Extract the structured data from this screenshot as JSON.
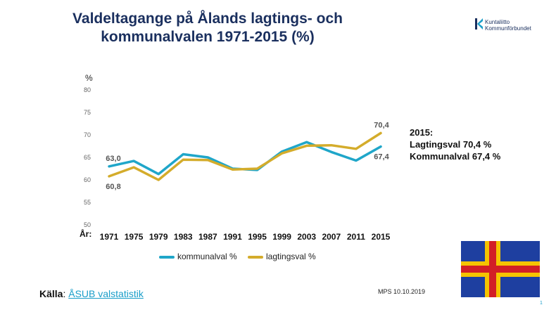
{
  "title_line1": "Valdeltagange på Ålands lagtings- och",
  "title_line2": "kommunalvalen 1971-2015 (%)",
  "logo": {
    "line1": "Kuntaliitto",
    "line2": "Kommunförbundet"
  },
  "note": {
    "heading": "2015:",
    "line1": "Lagtingsval 70,4 %",
    "line2": "Kommunalval 67,4 %"
  },
  "source": {
    "label": "Källa",
    "separator": ": ",
    "link": "ÅSUB valstatistik "
  },
  "date": "MPS 10.10.2019",
  "page_number": "1",
  "colors": {
    "kommunal": "#1fa6c9",
    "lagting": "#d4ac2b",
    "title": "#1a2f5e",
    "flag_blue": "#1e3fa0",
    "flag_yellow": "#f5c400",
    "flag_red": "#d21f26"
  },
  "chart_data": {
    "type": "line",
    "title": "Valdeltagange på Ålands lagtings- och kommunalvalen 1971-2015 (%)",
    "ylabel": "%",
    "xlabel": "År:",
    "categories": [
      "1971",
      "1975",
      "1979",
      "1983",
      "1987",
      "1991",
      "1995",
      "1999",
      "2003",
      "2007",
      "2011",
      "2015"
    ],
    "ylim": [
      50,
      80
    ],
    "yticks": [
      50,
      55,
      60,
      65,
      70,
      75,
      80
    ],
    "grid": false,
    "legend": "bottom",
    "series": [
      {
        "name": "kommunalval %",
        "color": "#1fa6c9",
        "values": [
          63.0,
          64.2,
          61.3,
          65.7,
          65.0,
          62.5,
          62.2,
          66.3,
          68.4,
          66.2,
          64.3,
          67.4
        ]
      },
      {
        "name": "lagtingsval %",
        "color": "#d4ac2b",
        "values": [
          60.8,
          62.8,
          60.0,
          64.5,
          64.4,
          62.3,
          62.5,
          65.9,
          67.6,
          67.7,
          66.9,
          70.4
        ]
      }
    ],
    "annotations": [
      {
        "series": 0,
        "index": 0,
        "text": "63,0"
      },
      {
        "series": 1,
        "index": 0,
        "text": "60,8"
      },
      {
        "series": 1,
        "index": 11,
        "text": "70,4"
      },
      {
        "series": 0,
        "index": 11,
        "text": "67,4"
      }
    ]
  }
}
